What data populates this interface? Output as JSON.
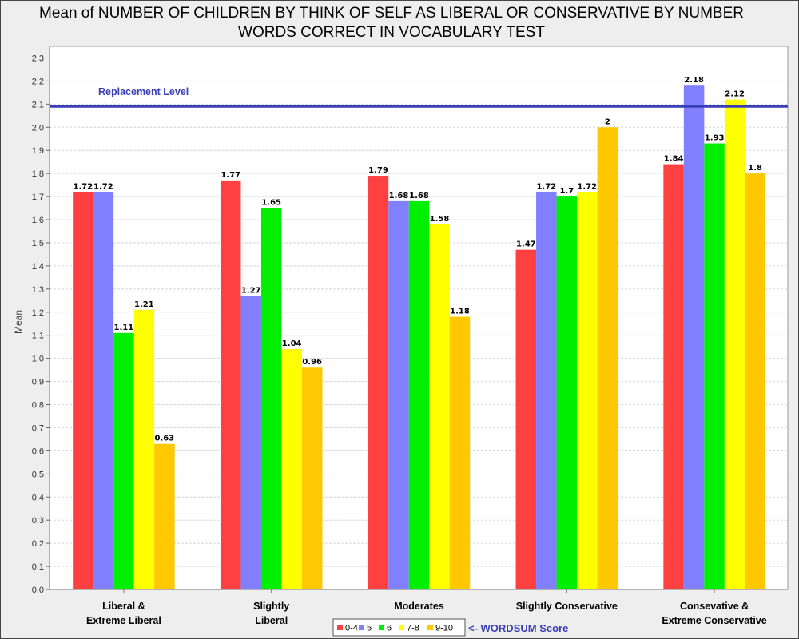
{
  "chart_data": {
    "type": "bar",
    "title": "Mean of NUMBER OF CHILDREN BY THINK OF SELF AS LIBERAL OR CONSERVATIVE BY NUMBER WORDS CORRECT IN VOCABULARY TEST",
    "title_lines": [
      "Mean of NUMBER OF CHILDREN BY THINK OF SELF AS LIBERAL OR CONSERVATIVE BY NUMBER",
      "WORDS CORRECT IN VOCABULARY TEST"
    ],
    "xlabel": "",
    "ylabel": "Mean",
    "ylim": [
      0,
      2.35
    ],
    "y_ticks": [
      0.0,
      0.1,
      0.2,
      0.3,
      0.4,
      0.5,
      0.6,
      0.7,
      0.8,
      0.9,
      1.0,
      1.1,
      1.2,
      1.3,
      1.4,
      1.5,
      1.6,
      1.7,
      1.8,
      1.9,
      2.0,
      2.1,
      2.2,
      2.3
    ],
    "grid": true,
    "categories": [
      [
        "Liberal &",
        "Extreme Liberal"
      ],
      [
        "Slightly",
        "Liberal"
      ],
      [
        "Moderates"
      ],
      [
        "Slightly Conservative"
      ],
      [
        "Consevative &",
        "Extreme Conservative"
      ]
    ],
    "series": [
      {
        "name": "0-4",
        "color": "#ff4040",
        "values": [
          1.72,
          1.77,
          1.79,
          1.47,
          1.84
        ],
        "labels": [
          "1.72",
          "1.77",
          "1.79",
          "1.47",
          "1.84"
        ]
      },
      {
        "name": "5",
        "color": "#8080ff",
        "values": [
          1.72,
          1.27,
          1.68,
          1.72,
          2.18
        ],
        "labels": [
          "1.72",
          "1.27",
          "1.68",
          "1.72",
          "2.18"
        ]
      },
      {
        "name": "6",
        "color": "#00ee00",
        "values": [
          1.11,
          1.65,
          1.68,
          1.7,
          1.93
        ],
        "labels": [
          "1.11",
          "1.65",
          "1.68",
          "1.7",
          "1.93"
        ]
      },
      {
        "name": "7-8",
        "color": "#ffff00",
        "values": [
          1.21,
          1.04,
          1.58,
          1.72,
          2.12
        ],
        "labels": [
          "1.21",
          "1.04",
          "1.58",
          "1.72",
          "2.12"
        ]
      },
      {
        "name": "9-10",
        "color": "#ffc800",
        "values": [
          0.63,
          0.96,
          1.18,
          2.0,
          1.8
        ],
        "labels": [
          "0.63",
          "0.96",
          "1.18",
          "2",
          "1.8"
        ]
      }
    ],
    "reference_line": {
      "label": "Replacement Level",
      "value": 2.09,
      "color": "#3a3fb5"
    },
    "legend": {
      "placement": "bottom-center",
      "note": "<- WORDSUM Score",
      "note_color": "#3a3fb5"
    }
  }
}
